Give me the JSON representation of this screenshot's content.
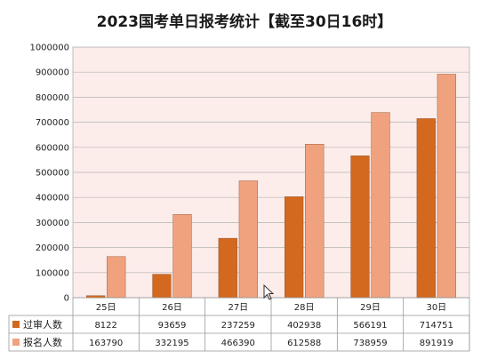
{
  "chart_data": {
    "type": "bar",
    "title": "2023国考单日报考统计【截至30日16时】",
    "categories": [
      "25日",
      "26日",
      "27日",
      "28日",
      "29日",
      "30日"
    ],
    "series": [
      {
        "name": "过审人数",
        "values": [
          8122,
          93659,
          237259,
          402938,
          566191,
          714751
        ],
        "color": "#d2691e"
      },
      {
        "name": "报名人数",
        "values": [
          163790,
          332195,
          466390,
          612588,
          738959,
          891919
        ],
        "color": "#f0a27e"
      }
    ],
    "ylim": [
      0,
      1000000
    ],
    "yticks": [
      "0",
      "100000",
      "200000",
      "300000",
      "400000",
      "500000",
      "600000",
      "700000",
      "800000",
      "900000",
      "1000000"
    ],
    "grid": true,
    "plot_background": "#fcecea",
    "legend": "data-table"
  }
}
